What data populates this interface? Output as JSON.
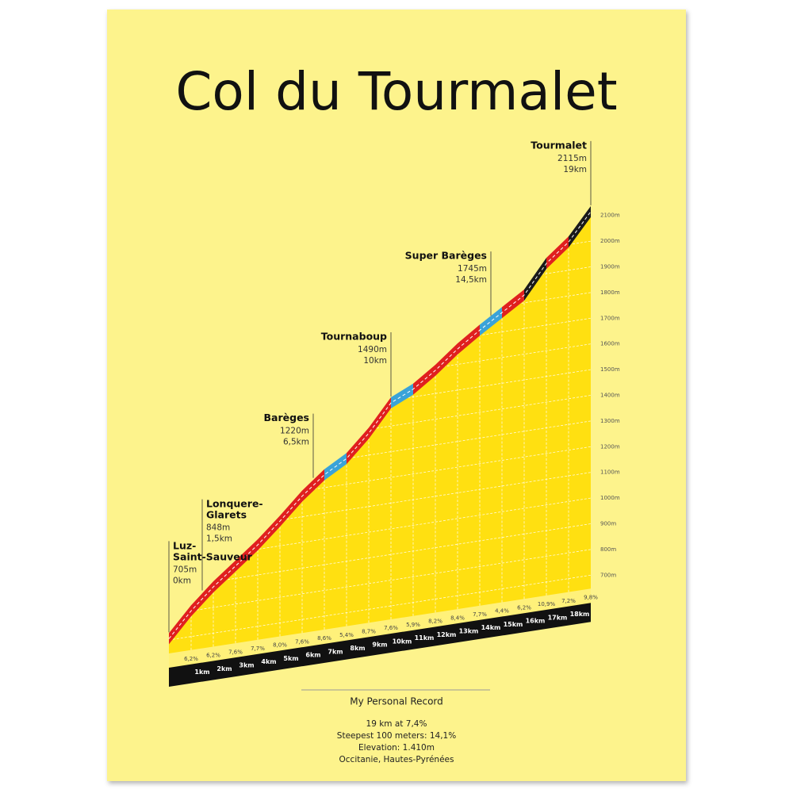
{
  "chart_data": {
    "type": "elevation-profile",
    "title": "Col du Tourmalet",
    "x": [
      0,
      1,
      2,
      3,
      4,
      5,
      6,
      7,
      8,
      9,
      10,
      11,
      12,
      13,
      14,
      15,
      16,
      17,
      18,
      19
    ],
    "values": [
      705,
      800,
      880,
      948,
      1017,
      1096,
      1180,
      1250,
      1300,
      1385,
      1490,
      1530,
      1590,
      1660,
      1720,
      1775,
      1830,
      1940,
      2010,
      2115
    ],
    "xlim": [
      0,
      19
    ],
    "xticks": [
      {
        "value": 1,
        "label": "1km"
      },
      {
        "value": 2,
        "label": "2km"
      },
      {
        "value": 3,
        "label": "3km"
      },
      {
        "value": 4,
        "label": "4km"
      },
      {
        "value": 5,
        "label": "5km"
      },
      {
        "value": 6,
        "label": "6km"
      },
      {
        "value": 7,
        "label": "7km"
      },
      {
        "value": 8,
        "label": "8km"
      },
      {
        "value": 9,
        "label": "9km"
      },
      {
        "value": 10,
        "label": "10km"
      },
      {
        "value": 11,
        "label": "11km"
      },
      {
        "value": 12,
        "label": "12km"
      },
      {
        "value": 13,
        "label": "13km"
      },
      {
        "value": 14,
        "label": "14km"
      },
      {
        "value": 15,
        "label": "15km"
      },
      {
        "value": 16,
        "label": "16km"
      },
      {
        "value": 17,
        "label": "17km"
      },
      {
        "value": 18,
        "label": "18km"
      }
    ],
    "ylim": [
      700,
      2100
    ],
    "yticks": [
      {
        "value": 700,
        "label": "700m"
      },
      {
        "value": 800,
        "label": "800m"
      },
      {
        "value": 900,
        "label": "900m"
      },
      {
        "value": 1000,
        "label": "1000m"
      },
      {
        "value": 1100,
        "label": "1100m"
      },
      {
        "value": 1200,
        "label": "1200m"
      },
      {
        "value": 1300,
        "label": "1300m"
      },
      {
        "value": 1400,
        "label": "1400m"
      },
      {
        "value": 1500,
        "label": "1500m"
      },
      {
        "value": 1600,
        "label": "1600m"
      },
      {
        "value": 1700,
        "label": "1700m"
      },
      {
        "value": 1800,
        "label": "1800m"
      },
      {
        "value": 1900,
        "label": "1900m"
      },
      {
        "value": 2000,
        "label": "2000m"
      },
      {
        "value": 2100,
        "label": "2100m"
      }
    ],
    "grid": true,
    "color": "#ffe011",
    "gradients": {
      "values": [
        6.2,
        6.2,
        7.6,
        7.7,
        8.0,
        7.6,
        8.6,
        5.4,
        8.7,
        7.6,
        5.9,
        8.2,
        8.4,
        7.7,
        4.4,
        6.2,
        10.9,
        7.2,
        9.8
      ],
      "value_labels": [
        "6,2%",
        "6,2%",
        "7,6%",
        "7,7%",
        "8,0%",
        "7,6%",
        "8,6%",
        "5,4%",
        "8,7%",
        "7,6%",
        "5,9%",
        "8,2%",
        "8,4%",
        "7,7%",
        "4,4%",
        "6,2%",
        "10,9%",
        "7,2%",
        "9,8%"
      ],
      "colors": [
        "#e0201f",
        "#e0201f",
        "#e0201f",
        "#e0201f",
        "#e0201f",
        "#e0201f",
        "#e0201f",
        "#3aa3d8",
        "#e0201f",
        "#e0201f",
        "#3aa3d8",
        "#e0201f",
        "#e0201f",
        "#e0201f",
        "#3aa3d8",
        "#e0201f",
        "#1a1a1a",
        "#e0201f",
        "#1a1a1a"
      ]
    },
    "annotations": [
      {
        "name": "Luz-Saint-Sauveur",
        "elevation": {
          "value": 705,
          "label": "705m"
        },
        "distance": {
          "value": 0,
          "label": "0km"
        }
      },
      {
        "name": "Lonquere-Glarets",
        "elevation": {
          "value": 848,
          "label": "848m"
        },
        "distance": {
          "value": 1.5,
          "label": "1,5km"
        }
      },
      {
        "name": "Barèges",
        "elevation": {
          "value": 1220,
          "label": "1220m"
        },
        "distance": {
          "value": 6.5,
          "label": "6,5km"
        }
      },
      {
        "name": "Tournaboup",
        "elevation": {
          "value": 1490,
          "label": "1490m"
        },
        "distance": {
          "value": 10,
          "label": "10km"
        }
      },
      {
        "name": "Super Barèges",
        "elevation": {
          "value": 1745,
          "label": "1745m"
        },
        "distance": {
          "value": 14.5,
          "label": "14,5km"
        }
      },
      {
        "name": "Tourmalet",
        "elevation": {
          "value": 2115,
          "label": "2115m"
        },
        "distance": {
          "value": 19,
          "label": "19km"
        }
      }
    ],
    "footer": {
      "heading": "My Personal Record",
      "lines": [
        "19 km at 7,4%",
        "Steepest 100 meters: 14,1%",
        "Elevation: 1.410m",
        "Occitanie, Hautes-Pyrénées"
      ]
    }
  }
}
